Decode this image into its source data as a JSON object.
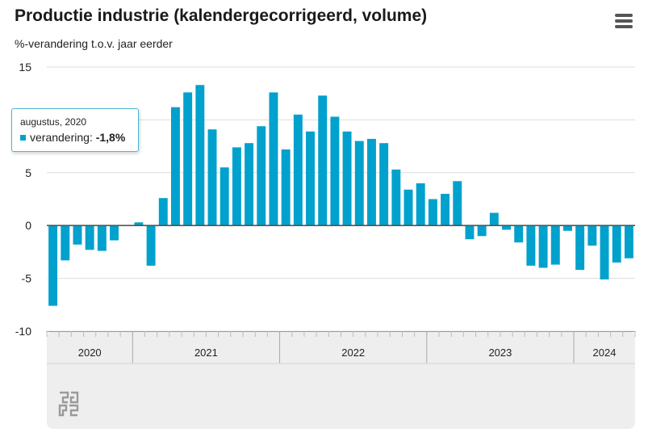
{
  "header": {
    "title": "Productie industrie (kalendergecorrigeerd, volume)",
    "subtitle": "%-verandering t.o.v. jaar eerder"
  },
  "menu": {
    "icon": "hamburger-menu-icon"
  },
  "tooltip": {
    "date": "augustus, 2020",
    "series_label": "verandering:",
    "value": "-1,8%"
  },
  "colors": {
    "bar": "#00a1cd",
    "zero_line": "#555555",
    "grid": "#dddddd",
    "navigator_bg": "#eeeeee"
  },
  "logo": {
    "name": "cbs-logo-icon"
  },
  "chart_data": {
    "type": "bar",
    "ylim": [
      -10,
      15
    ],
    "yticks": [
      15,
      10,
      5,
      0,
      -5,
      -10
    ],
    "ytick_labels": [
      "15",
      "10",
      "5",
      "0",
      "-5",
      "-10"
    ],
    "year_labels": [
      "2020",
      "2021",
      "2022",
      "2023",
      "2024"
    ],
    "year_month_counts": [
      7,
      12,
      12,
      12,
      5
    ],
    "grid": true,
    "categories": [
      "2020-06",
      "2020-07",
      "2020-08",
      "2020-09",
      "2020-10",
      "2020-11",
      "2020-12",
      "2021-01",
      "2021-02",
      "2021-03",
      "2021-04",
      "2021-05",
      "2021-06",
      "2021-07",
      "2021-08",
      "2021-09",
      "2021-10",
      "2021-11",
      "2021-12",
      "2022-01",
      "2022-02",
      "2022-03",
      "2022-04",
      "2022-05",
      "2022-06",
      "2022-07",
      "2022-08",
      "2022-09",
      "2022-10",
      "2022-11",
      "2022-12",
      "2023-01",
      "2023-02",
      "2023-03",
      "2023-04",
      "2023-05",
      "2023-06",
      "2023-07",
      "2023-08",
      "2023-09",
      "2023-10",
      "2023-11",
      "2023-12",
      "2024-01",
      "2024-02",
      "2024-03",
      "2024-04",
      "2024-05"
    ],
    "series": [
      {
        "values": [
          -7.6,
          -3.3,
          -1.8,
          -2.3,
          -2.4,
          -1.4,
          0.0,
          0.3,
          -3.8,
          2.6,
          11.2,
          12.6,
          13.3,
          9.1,
          5.5,
          7.4,
          7.8,
          9.4,
          12.6,
          7.2,
          10.5,
          8.9,
          12.3,
          10.3,
          8.9,
          8.0,
          8.2,
          7.8,
          5.3,
          3.4,
          4.0,
          2.5,
          3.0,
          4.2,
          -1.3,
          -1.0,
          1.2,
          -0.4,
          -1.6,
          -3.8,
          -4.0,
          -3.7,
          -0.5,
          -4.2,
          -1.9,
          -5.1,
          -3.5,
          -3.1
        ]
      }
    ]
  }
}
